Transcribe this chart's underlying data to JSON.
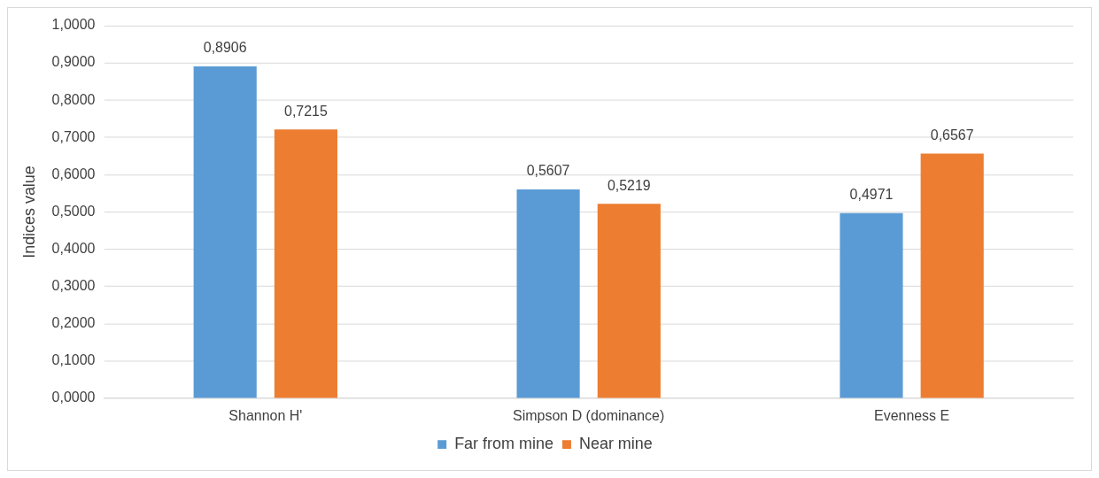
{
  "chart_data": {
    "type": "bar",
    "ylabel": "Indices value",
    "categories": [
      "Shannon H'",
      "Simpson D (dominance)",
      "Evenness E"
    ],
    "series": [
      {
        "name": "Far from mine",
        "color": "#5b9bd5",
        "values": [
          0.8906,
          0.5607,
          0.4971
        ],
        "value_labels": [
          "0,8906",
          "0,5607",
          "0,4971"
        ]
      },
      {
        "name": "Near mine",
        "color": "#ed7d31",
        "values": [
          0.7215,
          0.5219,
          0.6567
        ],
        "value_labels": [
          "0,7215",
          "0,5219",
          "0,6567"
        ]
      }
    ],
    "ylim": [
      0,
      1
    ],
    "yticks": [
      {
        "value": 0,
        "label": "0,0000"
      },
      {
        "value": 0.1,
        "label": "0,1000"
      },
      {
        "value": 0.2,
        "label": "0,2000"
      },
      {
        "value": 0.3,
        "label": "0,3000"
      },
      {
        "value": 0.4,
        "label": "0,4000"
      },
      {
        "value": 0.5,
        "label": "0,5000"
      },
      {
        "value": 0.6,
        "label": "0,6000"
      },
      {
        "value": 0.7,
        "label": "0,7000"
      },
      {
        "value": 0.8,
        "label": "0,8000"
      },
      {
        "value": 0.9,
        "label": "0,9000"
      },
      {
        "value": 1,
        "label": "1,0000"
      }
    ],
    "grid": "y",
    "legend": "bottom"
  }
}
